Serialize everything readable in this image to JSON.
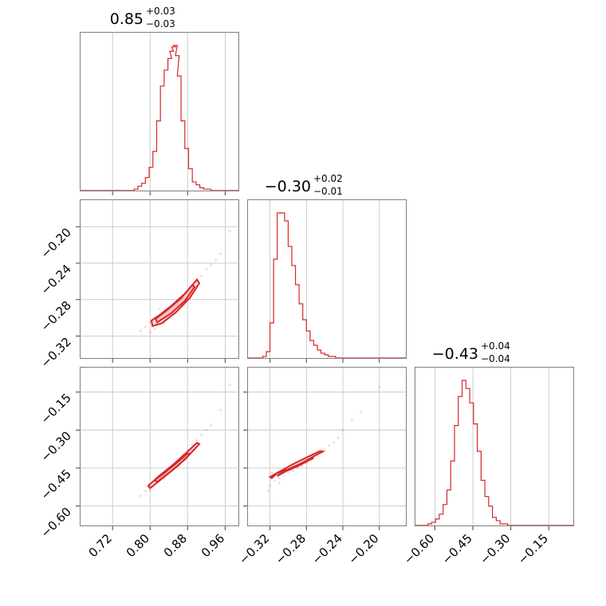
{
  "chart_data": {
    "type": "corner",
    "color": "#d62728",
    "grid": true,
    "parameters": [
      {
        "title_value": "0.85",
        "title_plus": "+0.03",
        "title_minus": "−0.03",
        "range": [
          0.65,
          0.99
        ],
        "ticks": [
          0.72,
          0.8,
          0.88,
          0.96
        ],
        "tick_labels": [
          "0.72",
          "0.80",
          "0.88",
          "0.96"
        ],
        "hist": {
          "x": [
            0.77,
            0.778,
            0.786,
            0.794,
            0.802,
            0.81,
            0.818,
            0.826,
            0.834,
            0.842,
            0.846,
            0.85,
            0.854,
            0.858,
            0.862,
            0.87,
            0.878,
            0.886,
            0.894,
            0.902,
            0.91,
            0.918,
            0.926,
            0.934
          ],
          "y": [
            0.01,
            0.03,
            0.05,
            0.09,
            0.16,
            0.27,
            0.48,
            0.72,
            0.83,
            0.91,
            0.96,
            0.99,
            1.0,
            0.93,
            0.79,
            0.48,
            0.29,
            0.15,
            0.06,
            0.04,
            0.02,
            0.01,
            0.01,
            0.0
          ]
        }
      },
      {
        "title_value": "−0.30",
        "title_plus": "+0.02",
        "title_minus": "−0.01",
        "range": [
          -0.345,
          -0.17
        ],
        "ticks": [
          -0.32,
          -0.28,
          -0.24,
          -0.2
        ],
        "tick_labels": [
          "−0.32",
          "−0.28",
          "−0.24",
          "−0.20"
        ],
        "hist": {
          "x": [
            -0.326,
            -0.322,
            -0.318,
            -0.314,
            -0.31,
            -0.306,
            -0.302,
            -0.298,
            -0.294,
            -0.29,
            -0.286,
            -0.282,
            -0.278,
            -0.274,
            -0.27,
            -0.266,
            -0.262,
            -0.258,
            -0.254,
            -0.25,
            -0.246,
            -0.242
          ],
          "y": [
            0.01,
            0.04,
            0.22,
            0.62,
            0.91,
            0.91,
            0.86,
            0.7,
            0.58,
            0.46,
            0.34,
            0.24,
            0.17,
            0.11,
            0.08,
            0.05,
            0.03,
            0.02,
            0.01,
            0.01,
            0.0,
            0.0
          ]
        }
      },
      {
        "title_value": "−0.43",
        "title_plus": "+0.04",
        "title_minus": "−0.04",
        "range": [
          -0.68,
          -0.05
        ],
        "ticks": [
          -0.6,
          -0.45,
          -0.3,
          -0.15
        ],
        "tick_labels": [
          "−0.60",
          "−0.45",
          "−0.30",
          "−0.15"
        ],
        "hist": {
          "x": [
            -0.62,
            -0.605,
            -0.59,
            -0.575,
            -0.56,
            -0.545,
            -0.53,
            -0.515,
            -0.5,
            -0.485,
            -0.47,
            -0.455,
            -0.44,
            -0.425,
            -0.41,
            -0.395,
            -0.38,
            -0.365,
            -0.35,
            -0.335,
            -0.32,
            -0.305,
            -0.29,
            -0.275
          ],
          "y": [
            0.01,
            0.02,
            0.04,
            0.07,
            0.13,
            0.22,
            0.4,
            0.62,
            0.8,
            0.9,
            0.85,
            0.76,
            0.63,
            0.46,
            0.28,
            0.18,
            0.12,
            0.05,
            0.03,
            0.01,
            0.01,
            0.0,
            0.0,
            0.0
          ]
        }
      }
    ],
    "pairs": [
      {
        "x_param": 0,
        "y_param": 1,
        "scatter": [
          [
            0.79,
            -0.31
          ],
          [
            0.8,
            -0.305
          ],
          [
            0.81,
            -0.3
          ],
          [
            0.82,
            -0.298
          ],
          [
            0.83,
            -0.295
          ],
          [
            0.84,
            -0.29
          ],
          [
            0.85,
            -0.286
          ],
          [
            0.86,
            -0.282
          ],
          [
            0.87,
            -0.278
          ],
          [
            0.88,
            -0.272
          ],
          [
            0.89,
            -0.266
          ],
          [
            0.9,
            -0.26
          ],
          [
            0.91,
            -0.254
          ],
          [
            0.92,
            -0.247
          ],
          [
            0.93,
            -0.242
          ],
          [
            0.94,
            -0.236
          ],
          [
            0.95,
            -0.23
          ],
          [
            0.78,
            -0.314
          ],
          [
            0.8,
            -0.316
          ],
          [
            0.81,
            -0.312
          ],
          [
            0.83,
            -0.306
          ],
          [
            0.85,
            -0.295
          ],
          [
            0.87,
            -0.286
          ],
          [
            0.88,
            -0.28
          ],
          [
            0.97,
            -0.205
          ],
          [
            0.82,
            -0.29
          ]
        ],
        "contours": [
          [
            [
              0.805,
              -0.309
            ],
            [
              0.825,
              -0.306
            ],
            [
              0.855,
              -0.294
            ],
            [
              0.885,
              -0.278
            ],
            [
              0.905,
              -0.262
            ],
            [
              0.9,
              -0.258
            ],
            [
              0.875,
              -0.273
            ],
            [
              0.845,
              -0.287
            ],
            [
              0.82,
              -0.297
            ],
            [
              0.803,
              -0.303
            ]
          ],
          [
            [
              0.815,
              -0.305
            ],
            [
              0.845,
              -0.295
            ],
            [
              0.875,
              -0.281
            ],
            [
              0.895,
              -0.266
            ],
            [
              0.89,
              -0.264
            ],
            [
              0.865,
              -0.279
            ],
            [
              0.835,
              -0.292
            ],
            [
              0.812,
              -0.301
            ]
          ]
        ]
      },
      {
        "x_param": 0,
        "y_param": 2,
        "scatter": [
          [
            0.78,
            -0.56
          ],
          [
            0.79,
            -0.54
          ],
          [
            0.8,
            -0.52
          ],
          [
            0.81,
            -0.5
          ],
          [
            0.82,
            -0.48
          ],
          [
            0.83,
            -0.47
          ],
          [
            0.84,
            -0.45
          ],
          [
            0.85,
            -0.44
          ],
          [
            0.86,
            -0.42
          ],
          [
            0.87,
            -0.4
          ],
          [
            0.88,
            -0.38
          ],
          [
            0.89,
            -0.36
          ],
          [
            0.9,
            -0.34
          ],
          [
            0.91,
            -0.32
          ],
          [
            0.92,
            -0.3
          ],
          [
            0.93,
            -0.28
          ],
          [
            0.95,
            -0.22
          ],
          [
            0.97,
            -0.12
          ],
          [
            0.8,
            -0.54
          ],
          [
            0.83,
            -0.49
          ],
          [
            0.86,
            -0.44
          ],
          [
            0.89,
            -0.38
          ]
        ],
        "contours": [
          [
            [
              0.8,
              -0.53
            ],
            [
              0.83,
              -0.485
            ],
            [
              0.86,
              -0.44
            ],
            [
              0.89,
              -0.385
            ],
            [
              0.905,
              -0.355
            ],
            [
              0.9,
              -0.35
            ],
            [
              0.88,
              -0.385
            ],
            [
              0.85,
              -0.435
            ],
            [
              0.82,
              -0.48
            ],
            [
              0.796,
              -0.52
            ]
          ],
          [
            [
              0.815,
              -0.505
            ],
            [
              0.845,
              -0.462
            ],
            [
              0.875,
              -0.415
            ],
            [
              0.885,
              -0.395
            ],
            [
              0.88,
              -0.392
            ],
            [
              0.86,
              -0.425
            ],
            [
              0.83,
              -0.47
            ],
            [
              0.81,
              -0.498
            ]
          ]
        ]
      },
      {
        "x_param": 1,
        "y_param": 2,
        "scatter": [
          [
            -0.32,
            -0.52
          ],
          [
            -0.315,
            -0.5
          ],
          [
            -0.31,
            -0.49
          ],
          [
            -0.305,
            -0.48
          ],
          [
            -0.3,
            -0.47
          ],
          [
            -0.295,
            -0.46
          ],
          [
            -0.29,
            -0.45
          ],
          [
            -0.285,
            -0.44
          ],
          [
            -0.28,
            -0.43
          ],
          [
            -0.275,
            -0.42
          ],
          [
            -0.27,
            -0.4
          ],
          [
            -0.265,
            -0.39
          ],
          [
            -0.26,
            -0.38
          ],
          [
            -0.255,
            -0.36
          ],
          [
            -0.25,
            -0.35
          ],
          [
            -0.245,
            -0.33
          ],
          [
            -0.24,
            -0.3
          ],
          [
            -0.23,
            -0.26
          ],
          [
            -0.22,
            -0.23
          ],
          [
            -0.2,
            -0.13
          ],
          [
            -0.322,
            -0.54
          ],
          [
            -0.318,
            -0.47
          ],
          [
            -0.31,
            -0.51
          ]
        ],
        "contours": [
          [
            [
              -0.318,
              -0.49
            ],
            [
              -0.312,
              -0.47
            ],
            [
              -0.3,
              -0.455
            ],
            [
              -0.285,
              -0.43
            ],
            [
              -0.27,
              -0.4
            ],
            [
              -0.262,
              -0.385
            ],
            [
              -0.265,
              -0.383
            ],
            [
              -0.278,
              -0.405
            ],
            [
              -0.295,
              -0.435
            ],
            [
              -0.31,
              -0.465
            ],
            [
              -0.32,
              -0.485
            ]
          ],
          [
            [
              -0.312,
              -0.482
            ],
            [
              -0.302,
              -0.462
            ],
            [
              -0.288,
              -0.44
            ],
            [
              -0.275,
              -0.415
            ],
            [
              -0.272,
              -0.41
            ],
            [
              -0.285,
              -0.432
            ],
            [
              -0.298,
              -0.455
            ],
            [
              -0.31,
              -0.475
            ]
          ]
        ]
      }
    ]
  }
}
